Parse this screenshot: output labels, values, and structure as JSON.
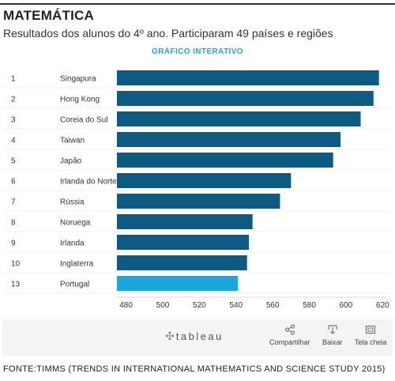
{
  "header": {
    "title": "MATEMÁTICA",
    "subtitle": "Resultados dos alunos do 4º ano. Participaram 49 países e regiões",
    "interactive_label": "GRÁFICO INTERATIVO"
  },
  "chart_data": {
    "type": "bar",
    "orientation": "horizontal",
    "ranks": [
      "1",
      "2",
      "3",
      "4",
      "5",
      "6",
      "7",
      "8",
      "9",
      "10",
      "13"
    ],
    "categories": [
      "Singapura",
      "Hong Kong",
      "Coreia do Sul",
      "Taiwan",
      "Japão",
      "Irlanda do Norte",
      "Rússia",
      "Noruega",
      "Irlanda",
      "Inglaterra",
      "Portugal"
    ],
    "values": [
      618,
      615,
      608,
      597,
      593,
      570,
      564,
      549,
      547,
      546,
      541
    ],
    "xlim": [
      475,
      622
    ],
    "xticks": [
      480,
      500,
      520,
      540,
      560,
      580,
      600,
      620
    ],
    "grid": false,
    "colors": {
      "default": "#0d5a82",
      "highlight": "#1aa7e0"
    },
    "highlight_category": "Portugal"
  },
  "toolbar": {
    "logo": "tableau",
    "share_label": "Compartilhar",
    "download_label": "Baixar",
    "fullscreen_label": "Tela cheia",
    "share_icon": "share-icon",
    "download_icon": "download-icon",
    "fullscreen_icon": "fullscreen-icon"
  },
  "footer": {
    "source": "FONTE:TIMMS (TRENDS IN INTERNATIONAL MATHEMATICS AND SCIENCE STUDY 2015)"
  }
}
